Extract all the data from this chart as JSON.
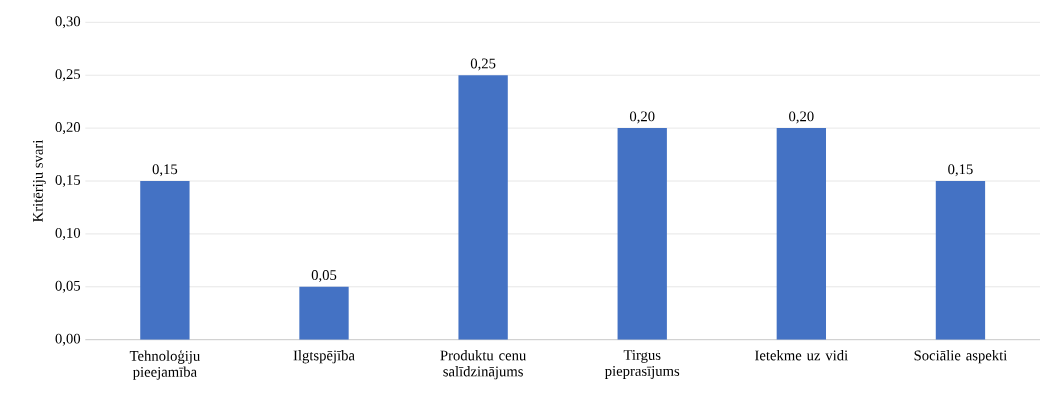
{
  "chart_data": {
    "type": "bar",
    "ylabel": "Kritēriju svari",
    "categories": [
      "Tehnoloģiju pieejamība",
      "Ilgtspējība",
      "Produktu cenu salīdzinājums",
      "Tirgus pieprasījums",
      "Ietekme uz vidi",
      "Sociālie aspekti"
    ],
    "values": [
      0.15,
      0.05,
      0.25,
      0.2,
      0.2,
      0.15
    ],
    "value_labels": [
      "0,15",
      "0,05",
      "0,25",
      "0,20",
      "0,20",
      "0,15"
    ],
    "color": "#4472c4",
    "ylim": [
      0,
      0.3
    ],
    "yticks": [
      {
        "value": 0,
        "label": "0,00"
      },
      {
        "value": 0.05,
        "label": "0,05"
      },
      {
        "value": 0.1,
        "label": "0,10"
      },
      {
        "value": 0.15,
        "label": "0,15"
      },
      {
        "value": 0.2,
        "label": "0,20"
      },
      {
        "value": 0.25,
        "label": "0,25"
      },
      {
        "value": 0.3,
        "label": "0,30"
      }
    ],
    "grid": "y"
  }
}
